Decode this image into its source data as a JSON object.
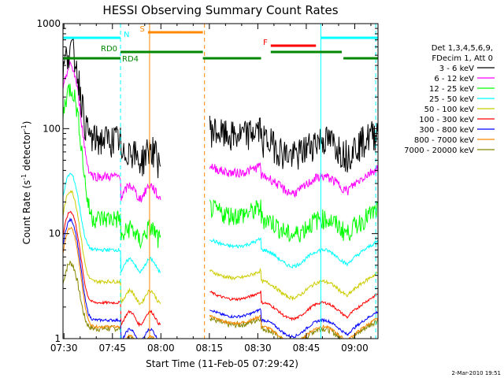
{
  "chart_data": {
    "type": "line",
    "title": "HESSI Observing Summary Count Rates",
    "xlabel": "Start Time (11-Feb-05 07:29:42)",
    "ylabel_main": "Count Rate (s",
    "ylabel_sup1": "-1",
    "ylabel_mid": " detector",
    "ylabel_sup2": "-1",
    "ylabel_end": ")",
    "x_ticks": [
      "07:30",
      "07:45",
      "08:00",
      "08:15",
      "08:30",
      "08:45",
      "09:00"
    ],
    "x_tick_minutes": [
      0,
      15,
      30,
      45,
      60,
      75,
      90
    ],
    "xlim_minutes": [
      -0.3,
      97.2
    ],
    "y_scale": "log",
    "ylim": [
      1,
      1000
    ],
    "y_ticks": [
      "1",
      "10",
      "100",
      "1000"
    ],
    "y_tick_values": [
      1,
      10,
      100,
      1000
    ],
    "legend_header": [
      "Det 1,3,4,5,6,9,",
      "FDecim 1, Att 0"
    ],
    "series": [
      {
        "name": "3 - 6 keV",
        "color": "#000000"
      },
      {
        "name": "6 - 12 keV",
        "color": "#ff00ff"
      },
      {
        "name": "12 - 25 keV",
        "color": "#00ff00"
      },
      {
        "name": "25 - 50 keV",
        "color": "#00ffff"
      },
      {
        "name": "50 - 100 keV",
        "color": "#cccc00"
      },
      {
        "name": "100 - 300 keV",
        "color": "#ff0000"
      },
      {
        "name": "300 - 800 keV",
        "color": "#0000ff"
      },
      {
        "name": "800 - 7000 keV",
        "color": "#ff8800"
      },
      {
        "name": "7000 - 20000 keV",
        "color": "#888800"
      }
    ],
    "flag_bars": [
      {
        "label": "N",
        "color": "#00ffff",
        "segments": [
          [
            -0.3,
            17.5
          ],
          [
            79.5,
            97.2
          ]
        ]
      },
      {
        "label": "S",
        "color": "#ff8800",
        "segments": [
          [
            26,
            43
          ]
        ]
      },
      {
        "label": "F",
        "color": "#ff0000",
        "segments": [
          [
            64,
            78
          ]
        ]
      },
      {
        "label": "RD0",
        "color": "#008800",
        "segments": [
          [
            17.5,
            43
          ],
          [
            64,
            86
          ]
        ]
      },
      {
        "label": "RD4",
        "color": "#008800",
        "segments": [
          [
            -0.3,
            17.5
          ],
          [
            43,
            61
          ],
          [
            86.5,
            97.2
          ]
        ]
      }
    ],
    "data_gaps_minutes": [
      [
        30,
        45
      ]
    ],
    "vertical_markers": [
      {
        "minute": 17.5,
        "color": "#00ffff",
        "style": "dashed"
      },
      {
        "minute": 26.5,
        "color": "#ff8800",
        "style": "solid"
      },
      {
        "minute": 43.5,
        "color": "#ff8800",
        "style": "dashed"
      },
      {
        "minute": 79.5,
        "color": "#00ffff",
        "style": "solid"
      },
      {
        "minute": 96.5,
        "color": "#00ffff",
        "style": "dashed"
      }
    ],
    "grid": false,
    "legend_position": "right"
  },
  "footer": {
    "timestamp": "2-Mar-2010 19:51"
  }
}
